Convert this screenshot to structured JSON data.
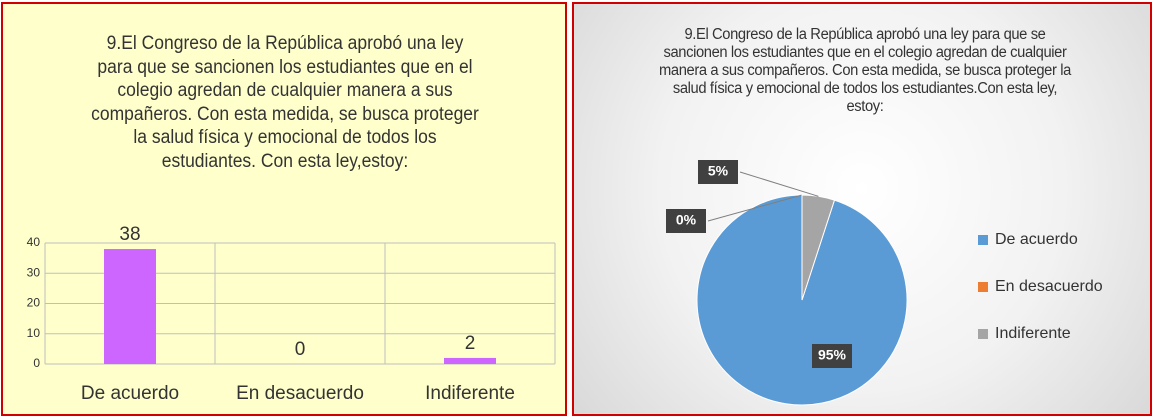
{
  "chart_data": [
    {
      "type": "bar",
      "title": "9.El Congreso de la República aprobó una ley para que se sancionen los estudiantes que en el colegio agredan de cualquier manera a sus compañeros. Con esta medida, se busca proteger la salud física y emocional de todos los estudiantes. Con esta ley,estoy:",
      "categories": [
        "De acuerdo",
        "En desacuerdo",
        "Indiferente"
      ],
      "values": [
        38,
        0,
        2
      ],
      "color": "#cc66ff",
      "ylim": [
        0,
        40
      ],
      "yticks": [
        0,
        10,
        20,
        30,
        40
      ],
      "grid": true
    },
    {
      "type": "pie",
      "title": "9.El Congreso de la República aprobó una ley para que se sancionen los estudiantes que en el colegio agredan de cualquier manera a sus compañeros. Con esta medida, se busca proteger la salud física y emocional de todos los estudiantes.Con esta ley, estoy:",
      "categories": [
        "De acuerdo",
        "En desacuerdo",
        "Indiferente"
      ],
      "values": [
        95,
        0,
        5
      ],
      "value_labels": [
        "95%",
        "0%",
        "5%"
      ],
      "colors": [
        "#5b9bd5",
        "#ed7d31",
        "#a5a5a5"
      ],
      "legend": "right"
    }
  ]
}
